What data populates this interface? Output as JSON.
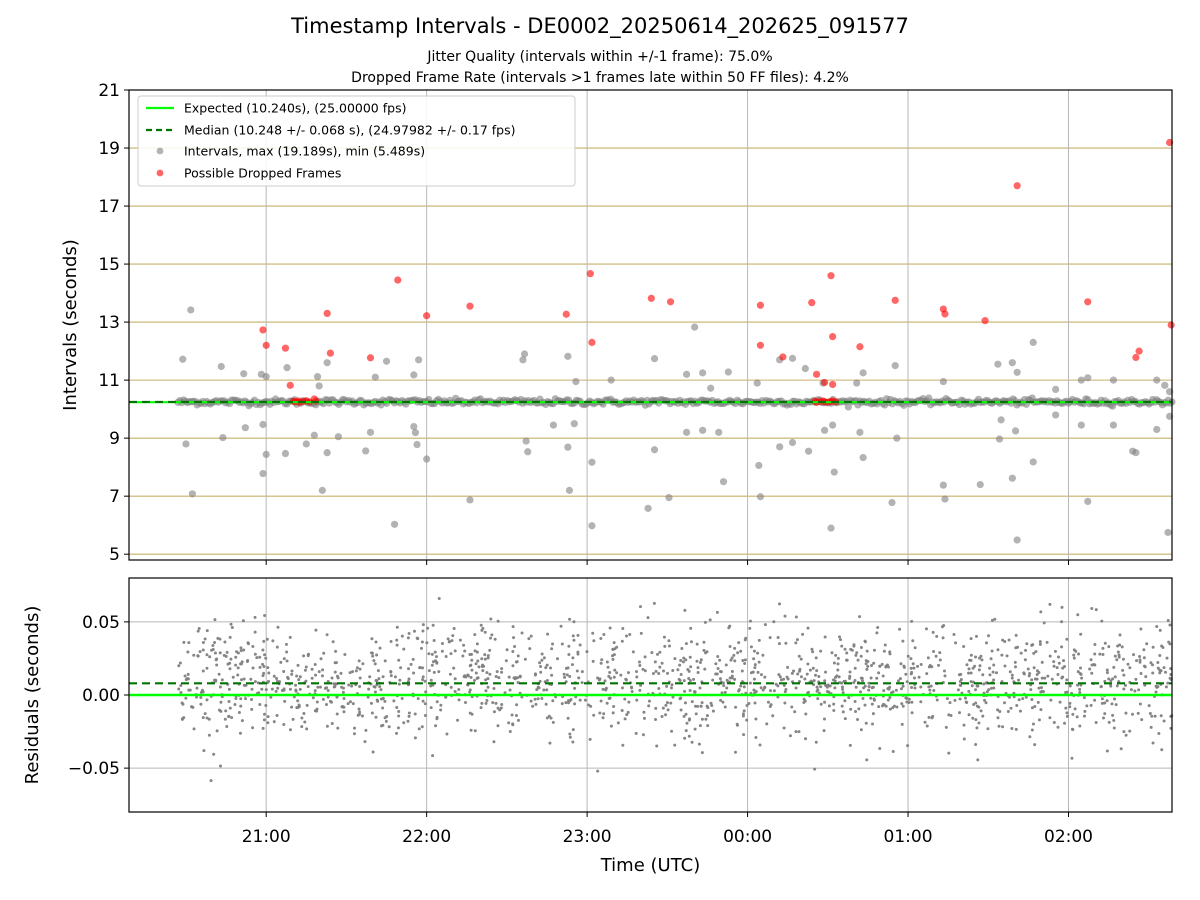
{
  "title": "Timestamp Intervals - DE0002_20250614_202625_091577",
  "subtitle_lines": [
    "Jitter Quality (intervals within +/-1 frame): 75.0%",
    "Dropped Frame Rate (intervals >1 frames late within 50 FF files): 4.2%"
  ],
  "colors": {
    "expected": "#00ff00",
    "median": "#007400",
    "intervals": "#808080",
    "dropped": "#ff0000",
    "hgrid_top": "#c8b06a",
    "grid": "#b8b8b8"
  },
  "chart_data": [
    {
      "type": "scatter",
      "name": "intervals-panel",
      "xlabel": "",
      "ylabel": "Intervals (seconds)",
      "x_unit": "hours (UTC)",
      "xlim": [
        20.145,
        26.645
      ],
      "ylim": [
        4.8,
        21.0
      ],
      "yticks": [
        5,
        7,
        9,
        11,
        13,
        15,
        17,
        19,
        21
      ],
      "grid": "on",
      "legend_position": "upper-left",
      "expected_line": 10.24,
      "median_line": 10.248,
      "legend": [
        "Expected (10.240s), (25.00000 fps)",
        "Median (10.248 +/- 0.068 s), (24.97982 +/- 0.17 fps)",
        "Intervals, max (19.189s), min (5.489s)",
        "Possible Dropped Frames"
      ],
      "series": [
        {
          "key": "outliers",
          "points": [
            [
              20.48,
              11.72
            ],
            [
              20.5,
              8.8
            ],
            [
              20.53,
              13.42
            ],
            [
              20.54,
              7.08
            ],
            [
              20.72,
              11.47
            ],
            [
              20.73,
              9.02
            ],
            [
              20.86,
              11.22
            ],
            [
              20.87,
              9.36
            ],
            [
              20.97,
              11.2
            ],
            [
              20.98,
              9.47
            ],
            [
              20.98,
              7.78
            ],
            [
              21.0,
              11.12
            ],
            [
              21.0,
              8.44
            ],
            [
              21.12,
              8.47
            ],
            [
              21.13,
              11.43
            ],
            [
              21.25,
              8.8
            ],
            [
              21.3,
              9.1
            ],
            [
              21.32,
              11.12
            ],
            [
              21.33,
              10.8
            ],
            [
              21.35,
              7.2
            ],
            [
              21.38,
              11.6
            ],
            [
              21.38,
              8.5
            ],
            [
              21.45,
              9.05
            ],
            [
              21.62,
              8.56
            ],
            [
              21.65,
              9.2
            ],
            [
              21.68,
              11.1
            ],
            [
              21.75,
              11.65
            ],
            [
              21.8,
              6.03
            ],
            [
              21.92,
              9.4
            ],
            [
              21.92,
              11.18
            ],
            [
              21.93,
              9.19
            ],
            [
              21.95,
              11.7
            ],
            [
              21.94,
              8.78
            ],
            [
              22.0,
              8.28
            ],
            [
              22.27,
              6.87
            ],
            [
              22.6,
              11.7
            ],
            [
              22.61,
              11.9
            ],
            [
              22.62,
              8.9
            ],
            [
              22.63,
              8.53
            ],
            [
              22.79,
              9.45
            ],
            [
              22.88,
              11.82
            ],
            [
              22.88,
              8.69
            ],
            [
              22.89,
              7.2
            ],
            [
              22.93,
              10.95
            ],
            [
              22.92,
              9.5
            ],
            [
              23.03,
              8.17
            ],
            [
              23.03,
              5.98
            ],
            [
              23.15,
              11.0
            ],
            [
              23.42,
              11.74
            ],
            [
              23.42,
              8.6
            ],
            [
              23.38,
              6.58
            ],
            [
              23.51,
              6.95
            ],
            [
              23.62,
              11.2
            ],
            [
              23.62,
              9.2
            ],
            [
              23.67,
              12.83
            ],
            [
              23.72,
              11.25
            ],
            [
              23.72,
              9.27
            ],
            [
              23.77,
              10.72
            ],
            [
              23.82,
              9.2
            ],
            [
              23.85,
              7.5
            ],
            [
              23.88,
              11.28
            ],
            [
              24.06,
              10.9
            ],
            [
              24.07,
              8.06
            ],
            [
              24.08,
              6.98
            ],
            [
              24.2,
              11.7
            ],
            [
              24.2,
              8.7
            ],
            [
              24.28,
              11.75
            ],
            [
              24.28,
              8.85
            ],
            [
              24.36,
              11.4
            ],
            [
              24.38,
              8.55
            ],
            [
              24.47,
              10.9
            ],
            [
              24.48,
              9.27
            ],
            [
              24.52,
              5.9
            ],
            [
              24.53,
              9.45
            ],
            [
              24.54,
              7.83
            ],
            [
              24.68,
              10.9
            ],
            [
              24.7,
              9.2
            ],
            [
              24.72,
              8.33
            ],
            [
              24.72,
              11.25
            ],
            [
              24.92,
              11.5
            ],
            [
              24.93,
              9.0
            ],
            [
              24.9,
              6.78
            ],
            [
              25.22,
              10.95
            ],
            [
              25.23,
              6.9
            ],
            [
              25.22,
              7.38
            ],
            [
              25.45,
              7.4
            ],
            [
              25.56,
              11.55
            ],
            [
              25.57,
              8.97
            ],
            [
              25.58,
              9.63
            ],
            [
              25.65,
              11.6
            ],
            [
              25.65,
              7.62
            ],
            [
              25.67,
              9.25
            ],
            [
              25.68,
              11.27
            ],
            [
              25.68,
              5.49
            ],
            [
              25.78,
              12.3
            ],
            [
              25.78,
              8.18
            ],
            [
              25.92,
              10.68
            ],
            [
              25.92,
              9.8
            ],
            [
              26.08,
              11.0
            ],
            [
              26.08,
              9.45
            ],
            [
              26.12,
              11.08
            ],
            [
              26.12,
              6.82
            ],
            [
              26.28,
              11.0
            ],
            [
              26.28,
              9.45
            ],
            [
              26.4,
              8.55
            ],
            [
              26.42,
              8.5
            ],
            [
              26.55,
              11.0
            ],
            [
              26.55,
              9.3
            ],
            [
              26.6,
              10.82
            ],
            [
              26.63,
              9.75
            ],
            [
              26.62,
              5.75
            ],
            [
              26.63,
              10.6
            ]
          ]
        },
        {
          "key": "dropped",
          "points": [
            [
              20.98,
              12.73
            ],
            [
              21.0,
              12.2
            ],
            [
              21.12,
              12.1
            ],
            [
              21.15,
              10.82
            ],
            [
              21.38,
              13.3
            ],
            [
              21.4,
              11.93
            ],
            [
              21.65,
              11.77
            ],
            [
              21.82,
              14.45
            ],
            [
              22.0,
              13.22
            ],
            [
              22.27,
              13.55
            ],
            [
              22.87,
              13.27
            ],
            [
              23.02,
              14.67
            ],
            [
              23.03,
              12.3
            ],
            [
              23.4,
              13.82
            ],
            [
              23.52,
              13.7
            ],
            [
              24.08,
              13.58
            ],
            [
              24.08,
              12.2
            ],
            [
              24.22,
              11.8
            ],
            [
              24.4,
              13.67
            ],
            [
              24.43,
              11.2
            ],
            [
              24.48,
              10.92
            ],
            [
              24.52,
              14.6
            ],
            [
              24.53,
              12.5
            ],
            [
              24.53,
              10.85
            ],
            [
              24.7,
              12.15
            ],
            [
              24.92,
              13.75
            ],
            [
              25.22,
              13.45
            ],
            [
              25.23,
              13.28
            ],
            [
              25.48,
              13.05
            ],
            [
              25.68,
              17.7
            ],
            [
              26.12,
              13.7
            ],
            [
              26.42,
              11.78
            ],
            [
              26.44,
              12.0
            ],
            [
              26.63,
              19.19
            ],
            [
              26.64,
              12.9
            ],
            [
              21.17,
              10.27
            ],
            [
              21.18,
              10.25
            ],
            [
              21.2,
              10.28
            ],
            [
              21.21,
              10.24
            ],
            [
              21.23,
              10.26
            ],
            [
              21.25,
              10.29
            ],
            [
              21.27,
              10.25
            ],
            [
              21.3,
              10.35
            ],
            [
              21.31,
              10.28
            ],
            [
              24.42,
              10.27
            ],
            [
              24.43,
              10.24
            ],
            [
              24.45,
              10.26
            ],
            [
              24.47,
              10.28
            ],
            [
              24.48,
              10.25
            ],
            [
              24.5,
              10.24
            ],
            [
              24.52,
              10.26
            ],
            [
              24.53,
              10.28
            ],
            [
              24.55,
              10.25
            ]
          ]
        }
      ]
    },
    {
      "type": "scatter",
      "name": "residuals-panel",
      "xlabel": "Time (UTC)",
      "ylabel": "Residuals (seconds)",
      "x_unit": "hours (UTC)",
      "xlim": [
        20.145,
        26.645
      ],
      "ylim": [
        -0.08,
        0.08
      ],
      "yticks": [
        -0.05,
        0.0,
        0.05
      ],
      "ytick_labels": [
        "−0.05",
        "0.00",
        "0.05"
      ],
      "xticks": [
        21,
        22,
        23,
        24,
        25,
        26
      ],
      "xtick_labels": [
        "21:00",
        "22:00",
        "23:00",
        "00:00",
        "01:00",
        "02:00"
      ],
      "grid": "on",
      "expected_line": 0.0,
      "median_line": 0.008,
      "noise_sigma": 0.02
    }
  ]
}
